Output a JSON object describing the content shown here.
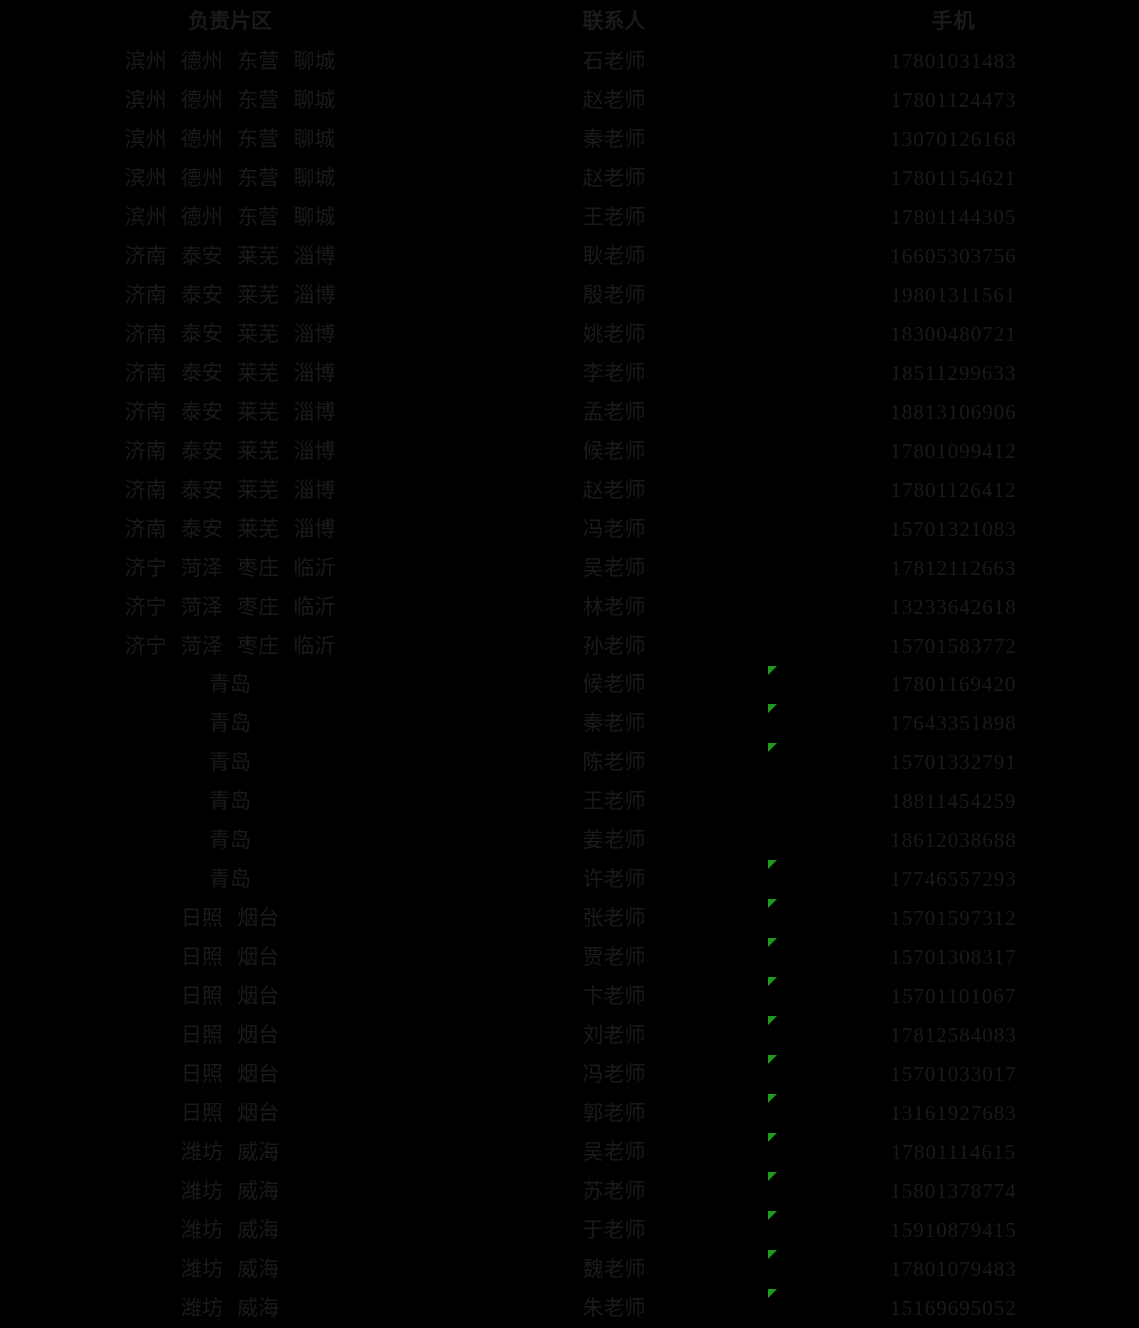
{
  "colors": {
    "background": "#000000",
    "text": "#1a1a1a",
    "error_indicator": "#1e9b1e"
  },
  "table": {
    "headers": [
      {
        "key": "region",
        "label": "负责片区"
      },
      {
        "key": "contact",
        "label": "联系人"
      },
      {
        "key": "phone",
        "label": "手机"
      }
    ],
    "rows": [
      {
        "region": "滨州 德州 东营 聊城",
        "contact": "石老师",
        "phone": "17801031483",
        "error_indicator": false
      },
      {
        "region": "滨州 德州 东营 聊城",
        "contact": "赵老师",
        "phone": "17801124473",
        "error_indicator": false
      },
      {
        "region": "滨州 德州 东营 聊城",
        "contact": "秦老师",
        "phone": "13070126168",
        "error_indicator": false
      },
      {
        "region": "滨州 德州 东营 聊城",
        "contact": "赵老师",
        "phone": "17801154621",
        "error_indicator": false
      },
      {
        "region": "滨州 德州 东营 聊城",
        "contact": "王老师",
        "phone": "17801144305",
        "error_indicator": false
      },
      {
        "region": "济南 泰安 莱芜 淄博",
        "contact": "耿老师",
        "phone": "16605303756",
        "error_indicator": false
      },
      {
        "region": "济南 泰安 莱芜 淄博",
        "contact": "殷老师",
        "phone": "19801311561",
        "error_indicator": false
      },
      {
        "region": "济南 泰安 莱芜 淄博",
        "contact": "姚老师",
        "phone": "18300480721",
        "error_indicator": false
      },
      {
        "region": "济南 泰安 莱芜 淄博",
        "contact": "李老师",
        "phone": "18511299633",
        "error_indicator": false
      },
      {
        "region": "济南 泰安 莱芜 淄博",
        "contact": "孟老师",
        "phone": "18813106906",
        "error_indicator": false
      },
      {
        "region": "济南 泰安 莱芜 淄博",
        "contact": "候老师",
        "phone": "17801099412",
        "error_indicator": false
      },
      {
        "region": "济南 泰安 莱芜 淄博",
        "contact": "赵老师",
        "phone": "17801126412",
        "error_indicator": false
      },
      {
        "region": "济南 泰安 莱芜 淄博",
        "contact": "冯老师",
        "phone": "15701321083",
        "error_indicator": false
      },
      {
        "region": "济宁 菏泽 枣庄 临沂",
        "contact": "吴老师",
        "phone": "17812112663",
        "error_indicator": false
      },
      {
        "region": "济宁 菏泽 枣庄 临沂",
        "contact": "林老师",
        "phone": "13233642618",
        "error_indicator": false
      },
      {
        "region": "济宁 菏泽 枣庄 临沂",
        "contact": "孙老师",
        "phone": "15701583772",
        "error_indicator": false
      },
      {
        "region": "青岛",
        "contact": "候老师",
        "phone": "17801169420",
        "error_indicator": true
      },
      {
        "region": "青岛",
        "contact": "秦老师",
        "phone": "17643351898",
        "error_indicator": true
      },
      {
        "region": "青岛",
        "contact": "陈老师",
        "phone": "15701332791",
        "error_indicator": true
      },
      {
        "region": "青岛",
        "contact": "王老师",
        "phone": "18811454259",
        "error_indicator": false
      },
      {
        "region": "青岛",
        "contact": "姜老师",
        "phone": "18612038688",
        "error_indicator": false
      },
      {
        "region": "青岛",
        "contact": "许老师",
        "phone": "17746557293",
        "error_indicator": true
      },
      {
        "region": "日照 烟台",
        "contact": "张老师",
        "phone": "15701597312",
        "error_indicator": true
      },
      {
        "region": "日照 烟台",
        "contact": "贾老师",
        "phone": "15701308317",
        "error_indicator": true
      },
      {
        "region": "日照 烟台",
        "contact": "卞老师",
        "phone": "15701101067",
        "error_indicator": true
      },
      {
        "region": "日照 烟台",
        "contact": "刘老师",
        "phone": "17812584083",
        "error_indicator": true
      },
      {
        "region": "日照 烟台",
        "contact": "冯老师",
        "phone": "15701033017",
        "error_indicator": true
      },
      {
        "region": "日照 烟台",
        "contact": "郭老师",
        "phone": "13161927683",
        "error_indicator": true
      },
      {
        "region": "潍坊 威海",
        "contact": "吴老师",
        "phone": "17801114615",
        "error_indicator": true
      },
      {
        "region": "潍坊 威海",
        "contact": "苏老师",
        "phone": "15801378774",
        "error_indicator": true
      },
      {
        "region": "潍坊 威海",
        "contact": "于老师",
        "phone": "15910879415",
        "error_indicator": true
      },
      {
        "region": "潍坊 威海",
        "contact": "魏老师",
        "phone": "17801079483",
        "error_indicator": true
      },
      {
        "region": "潍坊 威海",
        "contact": "朱老师",
        "phone": "15169695052",
        "error_indicator": true
      }
    ]
  }
}
